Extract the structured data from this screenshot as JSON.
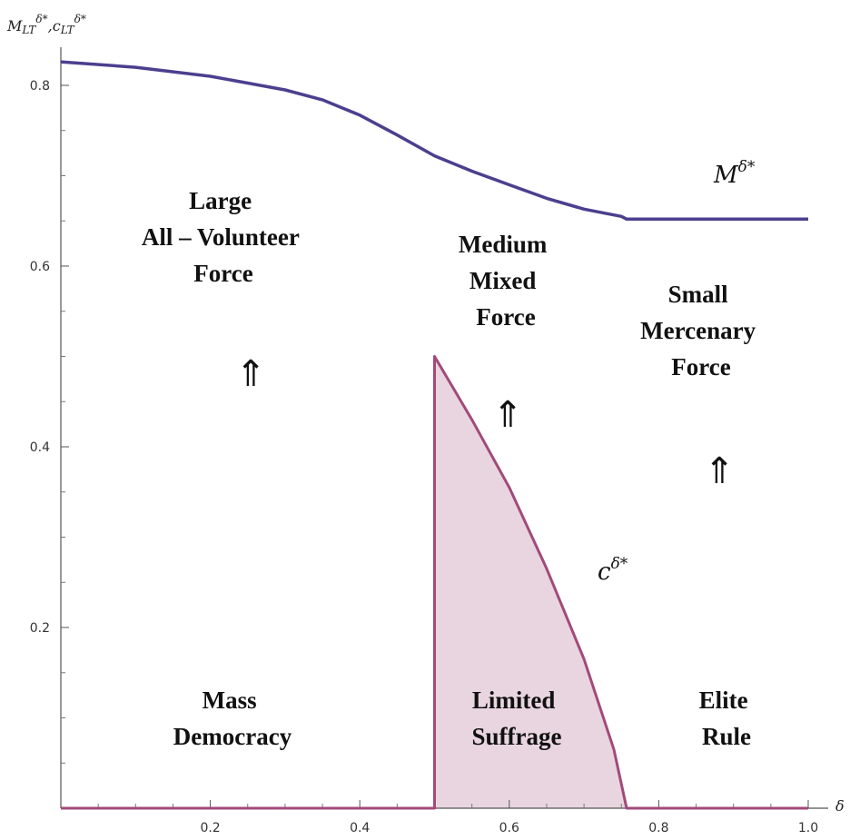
{
  "chart_data": {
    "type": "area",
    "title": "",
    "xlabel": "δ",
    "ylabel": {
      "main1": "M",
      "sub1": "LT",
      "sup1": "δ*",
      "sep": ",",
      "main2": "c",
      "sub2": "LT",
      "sup2": "δ*"
    },
    "xlim": [
      0,
      1
    ],
    "ylim": [
      0,
      0.84
    ],
    "x_ticks": [
      0.2,
      0.4,
      0.6,
      0.8,
      1.0
    ],
    "x_tick_labels": [
      "0.2",
      "0.4",
      "0.6",
      "0.8",
      "1.0"
    ],
    "y_ticks": [
      0.2,
      0.4,
      0.6,
      0.8
    ],
    "y_tick_labels": [
      "0.2",
      "0.4",
      "0.6",
      "0.8"
    ],
    "grid": false,
    "series": [
      {
        "name": "M",
        "color": "#4b3f8f",
        "x": [
          0,
          0.1,
          0.2,
          0.3,
          0.35,
          0.4,
          0.45,
          0.5,
          0.55,
          0.6,
          0.65,
          0.7,
          0.75,
          0.757,
          0.8,
          0.9,
          1.0
        ],
        "y": [
          0.826,
          0.82,
          0.81,
          0.795,
          0.784,
          0.767,
          0.745,
          0.722,
          0.705,
          0.69,
          0.675,
          0.663,
          0.655,
          0.652,
          0.652,
          0.652,
          0.652
        ]
      },
      {
        "name": "c",
        "color": "#a14a7a",
        "fill": "#e9d5df",
        "x": [
          0,
          0.5,
          0.5,
          0.55,
          0.6,
          0.65,
          0.7,
          0.74,
          0.757,
          0.8,
          1.0
        ],
        "y": [
          0,
          0,
          0.5,
          0.43,
          0.355,
          0.265,
          0.165,
          0.065,
          0,
          0,
          0
        ]
      }
    ],
    "annotations": {
      "m_label": {
        "main": "M",
        "sup": "δ*"
      },
      "c_label": {
        "main": "c",
        "sup": "δ*"
      },
      "arrow_glyph": "⇑",
      "region_labels": [
        {
          "lines": [
            "Large",
            "All – Volunteer",
            "Force"
          ]
        },
        {
          "lines": [
            "Medium",
            "Mixed",
            "Force"
          ]
        },
        {
          "lines": [
            "Small",
            "Mercenary",
            "Force"
          ]
        },
        {
          "lines": [
            "Mass",
            "Democracy"
          ]
        },
        {
          "lines": [
            "Limited",
            "Suffrage"
          ]
        },
        {
          "lines": [
            "Elite",
            "Rule"
          ]
        }
      ]
    }
  }
}
